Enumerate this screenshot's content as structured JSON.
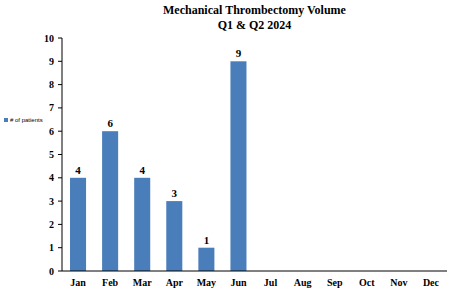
{
  "chart_data": {
    "type": "bar",
    "title": "Mechanical Thrombectomy Volume",
    "subtitle": "Q1 & Q2 2024",
    "categories": [
      "Jan",
      "Feb",
      "Mar",
      "Apr",
      "May",
      "Jun",
      "Jul",
      "Aug",
      "Sep",
      "Oct",
      "Nov",
      "Dec"
    ],
    "series": [
      {
        "name": "# of patients",
        "color": "#4a7ebb",
        "values": [
          4,
          6,
          4,
          3,
          1,
          9,
          null,
          null,
          null,
          null,
          null,
          null
        ]
      }
    ],
    "ylim": [
      0,
      10
    ],
    "yticks": [
      0,
      1,
      2,
      3,
      4,
      5,
      6,
      7,
      8,
      9,
      10
    ],
    "grid": false,
    "legend": "left",
    "data_labels": true
  }
}
